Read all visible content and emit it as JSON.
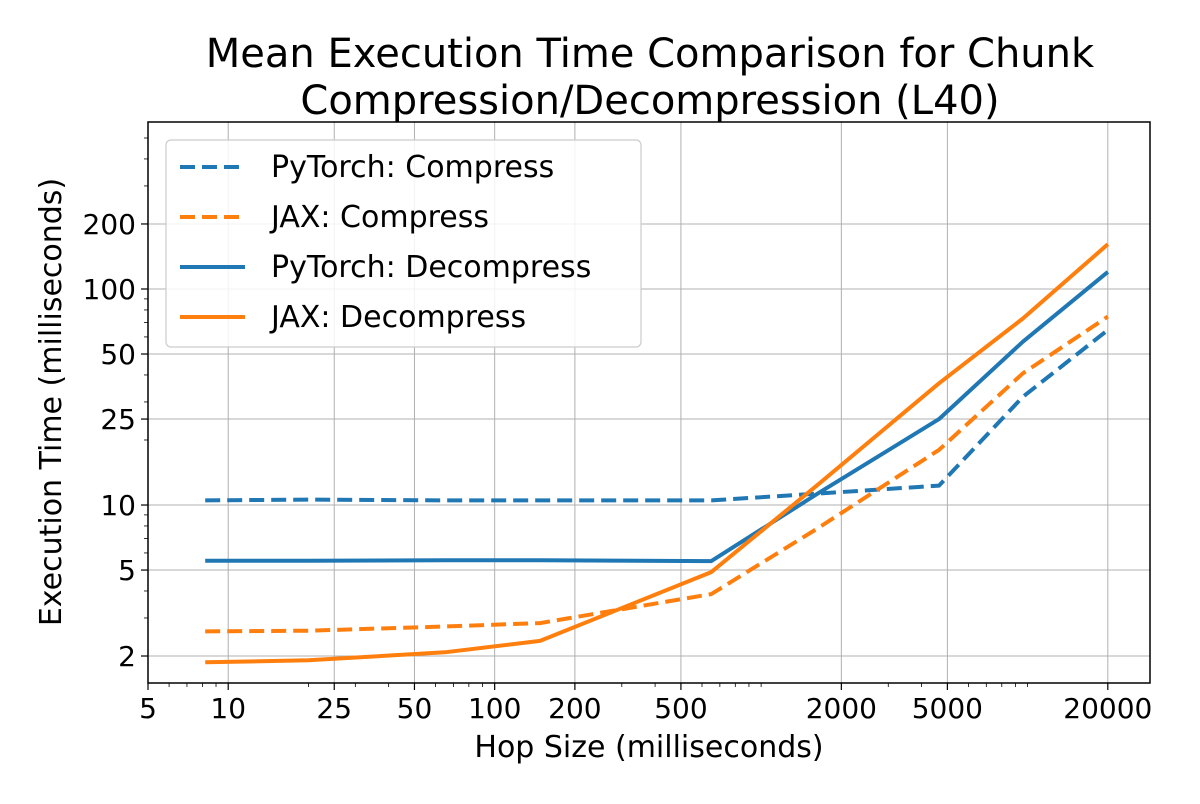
{
  "chart_data": {
    "type": "line",
    "title": [
      "Mean Execution Time Comparison for Chunk",
      "Compression/Decompression (L40)"
    ],
    "xlabel": "Hop Size (milliseconds)",
    "ylabel": "Execution Time (milliseconds)",
    "xscale": "log",
    "yscale": "log",
    "xlim": [
      5,
      28800
    ],
    "ylim": [
      1.5,
      593
    ],
    "xticks": [
      5,
      10,
      25,
      50,
      100,
      200,
      500,
      2000,
      5000,
      20000
    ],
    "yticks": [
      2,
      5,
      10,
      25,
      50,
      100,
      200
    ],
    "grid": true,
    "legend_position": "top-left",
    "x": [
      8.2,
      20,
      65,
      148,
      650,
      1630,
      4650,
      9600,
      20000
    ],
    "series": [
      {
        "name": "PyTorch: Compress",
        "color": "#1f77b4",
        "dash": true,
        "values": [
          10.5,
          10.6,
          10.5,
          10.5,
          10.5,
          11.3,
          12.3,
          31.7,
          64.6
        ]
      },
      {
        "name": "JAX: Compress",
        "color": "#ff7f0e",
        "dash": true,
        "values": [
          2.6,
          2.62,
          2.74,
          2.84,
          3.87,
          7.8,
          18.0,
          40.7,
          74.5
        ]
      },
      {
        "name": "PyTorch: Decompress",
        "color": "#1f77b4",
        "dash": false,
        "values": [
          5.52,
          5.52,
          5.55,
          5.55,
          5.5,
          11.3,
          25.0,
          57,
          120
        ]
      },
      {
        "name": "JAX: Decompress",
        "color": "#ff7f0e",
        "dash": false,
        "values": [
          1.87,
          1.91,
          2.08,
          2.35,
          4.89,
          12.4,
          36.6,
          73,
          161
        ]
      }
    ]
  }
}
